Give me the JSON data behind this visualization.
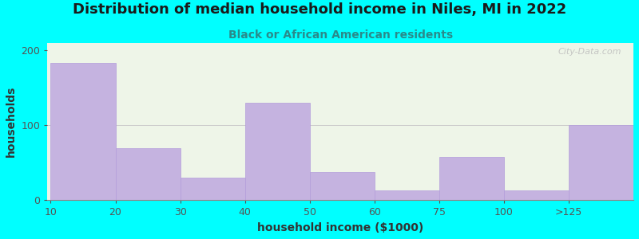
{
  "title": "Distribution of median household income in Niles, MI in 2022",
  "subtitle": "Black or African American residents",
  "xlabel": "household income ($1000)",
  "ylabel": "households",
  "background_color": "#00FFFF",
  "plot_bg_color": "#eef5e8",
  "bar_color": "#c5b3e0",
  "bar_edge_color": "#b39ddb",
  "categories": [
    "10",
    "20",
    "30",
    "40",
    "50",
    "60",
    "75",
    "100",
    ">125"
  ],
  "values": [
    183,
    70,
    30,
    130,
    38,
    13,
    58,
    13,
    100
  ],
  "ylim": [
    0,
    210
  ],
  "yticks": [
    0,
    100,
    200
  ],
  "title_fontsize": 13,
  "subtitle_fontsize": 10,
  "axis_label_fontsize": 10,
  "tick_fontsize": 9,
  "watermark_text": "City-Data.com",
  "title_color": "#1a1a1a",
  "subtitle_color": "#2a8a8a",
  "axis_label_color": "#333333",
  "tick_color": "#555555"
}
